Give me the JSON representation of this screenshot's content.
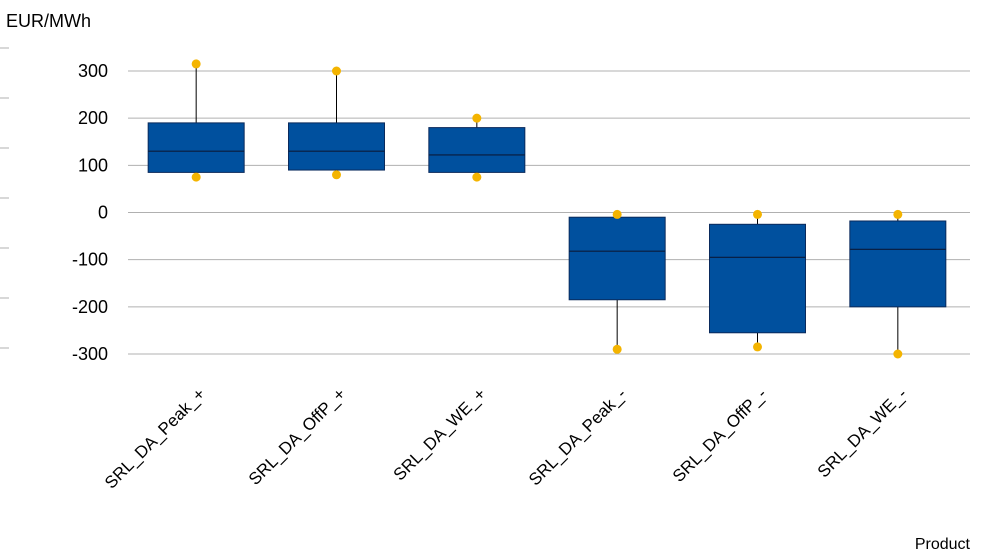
{
  "chart_data": {
    "type": "boxplot",
    "title": "",
    "ylabel": "EUR/MWh",
    "xlabel": "Product",
    "ylim": [
      -300,
      300
    ],
    "yticks": [
      300,
      200,
      100,
      0,
      -100,
      -200,
      -300
    ],
    "ytick_labels": [
      "300",
      "200",
      "100",
      "0",
      "-100",
      "-200",
      "-300"
    ],
    "grid": true,
    "colors": {
      "box": "#00509e",
      "box_edge": "#0a2a5c",
      "whisker_end": "#f4b400",
      "grid": "#b0b0b0"
    },
    "categories": [
      "SRL_DA_Peak_+",
      "SRL_DA_OffP_+",
      "SRL_DA_WE_+",
      "SRL_DA_Peak_-",
      "SRL_DA_OffP_-",
      "SRL_DA_WE_-"
    ],
    "boxes": [
      {
        "min": 75,
        "q1": 85,
        "median": 130,
        "q3": 190,
        "max": 315
      },
      {
        "min": 80,
        "q1": 90,
        "median": 130,
        "q3": 190,
        "max": 300
      },
      {
        "min": 75,
        "q1": 85,
        "median": 122,
        "q3": 180,
        "max": 200
      },
      {
        "min": -290,
        "q1": -185,
        "median": -82,
        "q3": -10,
        "max": -4
      },
      {
        "min": -285,
        "q1": -255,
        "median": -95,
        "q3": -25,
        "max": -4
      },
      {
        "min": -300,
        "q1": -200,
        "median": -78,
        "q3": -18,
        "max": -4
      }
    ]
  }
}
